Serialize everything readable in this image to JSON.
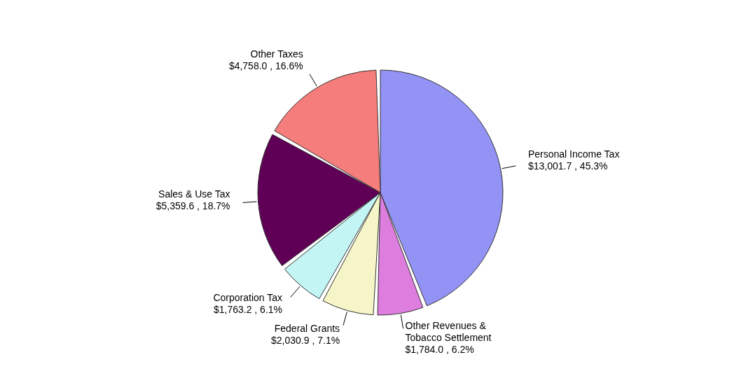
{
  "chart_data": {
    "type": "pie",
    "categories": [
      "Personal Income Tax",
      "Other Revenues & Tobacco Settlement",
      "Federal Grants",
      "Corporation Tax",
      "Sales & Use Tax",
      "Other Taxes"
    ],
    "values": [
      13001.7,
      1784.0,
      2030.9,
      1763.2,
      5359.6,
      4758.0
    ],
    "value_labels": [
      "$13,001.7 , 45.3%",
      "$1,784.0 , 6.2%",
      "$2,030.9 , 7.1%",
      "$1,763.2 , 6.1%",
      "$5,359.6 , 18.7%",
      "$4,758.0 , 16.6%"
    ],
    "colors": [
      "#9393f5",
      "#dd7ddd",
      "#f5f5c8",
      "#c4f5f5",
      "#5f0056",
      "#f57d7b"
    ]
  }
}
